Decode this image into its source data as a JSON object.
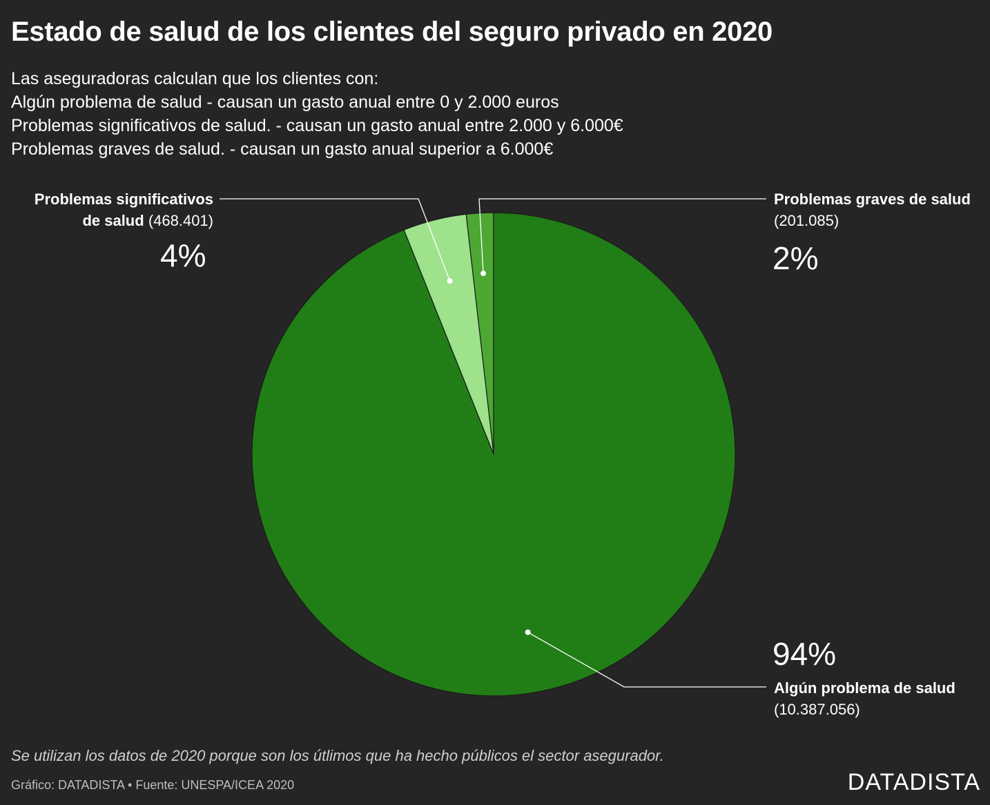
{
  "title": "Estado de salud de los clientes del seguro privado en 2020",
  "subtitle": [
    "Las aseguradoras calculan que los clientes con:",
    "Algún problema de salud - causan un gasto anual entre 0 y 2.000 euros",
    "Problemas significativos de salud. - causan un gasto anual entre 2.000 y 6.000€",
    "Problemas graves de salud. - causan un gasto anual superior a 6.000€"
  ],
  "chart_data": {
    "type": "pie",
    "title": "Estado de salud de los clientes del seguro privado en 2020",
    "slices": [
      {
        "name": "Algún problema de salud",
        "value": 10387056,
        "value_label": "(10.387.056)",
        "percent_label": "94%",
        "color": "#217e16"
      },
      {
        "name_line1": "Problemas significativos",
        "name_line2": "de salud",
        "value": 468401,
        "value_label": "(468.401)",
        "percent_label": "4%",
        "color": "#9ee28c"
      },
      {
        "name": "Problemas graves de salud",
        "value": 201085,
        "value_label": "(201.085)",
        "percent_label": "2%",
        "color": "#4ca733"
      }
    ],
    "start_angle": "top",
    "direction": "counterclockwise",
    "slice_border_color": "#1a1a1a"
  },
  "note": "Se utilizan los datos de 2020 porque son los útlimos que ha hecho públicos el sector asegurador.",
  "credit": "Gráfico: DATADISTA • Fuente: UNESPA/ICEA 2020",
  "brand": "DATADISTA"
}
